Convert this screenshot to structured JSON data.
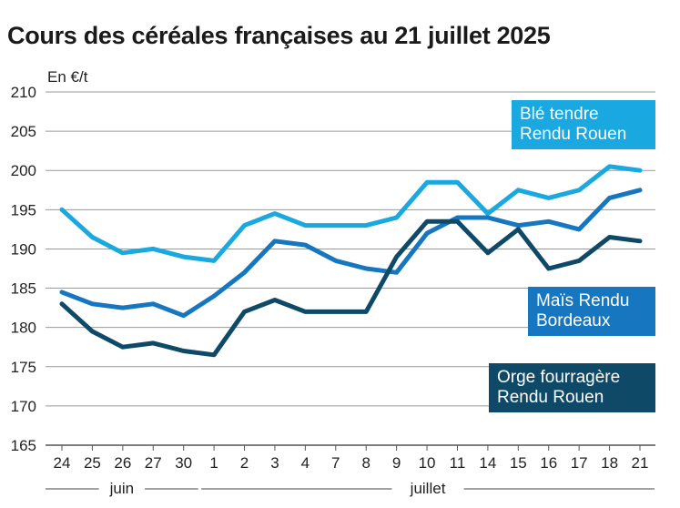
{
  "chart_data": {
    "type": "line",
    "title": "Cours des céréales françaises au 21 juillet 2025",
    "ylabel": "En €/t",
    "ylim": [
      165,
      210
    ],
    "yticks": [
      165,
      170,
      175,
      180,
      185,
      190,
      195,
      200,
      205,
      210
    ],
    "categories": [
      "24",
      "25",
      "26",
      "27",
      "30",
      "1",
      "2",
      "3",
      "4",
      "7",
      "8",
      "9",
      "10",
      "11",
      "14",
      "15",
      "16",
      "17",
      "18",
      "21"
    ],
    "month_groups": [
      {
        "label": "juin",
        "start": 0,
        "end": 4
      },
      {
        "label": "juillet",
        "start": 5,
        "end": 19
      }
    ],
    "grid": true,
    "series": [
      {
        "name": "Blé tendre Rendu Rouen",
        "legend_lines": [
          "Blé tendre",
          "Rendu Rouen"
        ],
        "color": "#1aa8e0",
        "values": [
          195,
          191.5,
          189.5,
          190,
          189,
          188.5,
          193,
          194.5,
          193,
          193,
          193,
          194,
          198.5,
          198.5,
          194.5,
          197.5,
          196.5,
          197.5,
          200.5,
          200
        ]
      },
      {
        "name": "Maïs Rendu Bordeaux",
        "legend_lines": [
          "Maïs Rendu",
          "Bordeaux"
        ],
        "color": "#1677c0",
        "values": [
          184.5,
          183,
          182.5,
          183,
          181.5,
          184,
          187,
          191,
          190.5,
          188.5,
          187.5,
          187,
          192,
          194,
          194,
          193,
          193.5,
          192.5,
          196.5,
          197.5
        ]
      },
      {
        "name": "Orge fourragère Rendu Rouen",
        "legend_lines": [
          "Orge fourragère",
          "Rendu Rouen"
        ],
        "color": "#0e4a68",
        "values": [
          183,
          179.5,
          177.5,
          178,
          177,
          176.5,
          182,
          183.5,
          182,
          182,
          182,
          189,
          193.5,
          193.5,
          189.5,
          192.5,
          187.5,
          188.5,
          191.5,
          191
        ]
      }
    ]
  }
}
